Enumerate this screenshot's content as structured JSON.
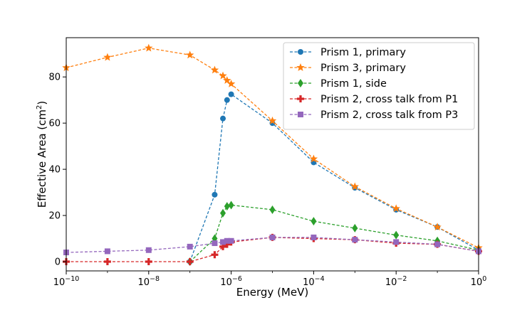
{
  "chart_data": {
    "type": "line",
    "title": "",
    "xlabel": "Energy (MeV)",
    "ylabel_main": "Effective Area (cm",
    "ylabel_sup": "2",
    "ylabel_close": ")",
    "xscale": "log",
    "xlim_exp": [
      -10,
      0
    ],
    "ylim": [
      -4,
      97
    ],
    "x_ticks": [
      {
        "base": "10",
        "exp": "−10",
        "value": -10
      },
      {
        "base": "10",
        "exp": "−8",
        "value": -8
      },
      {
        "base": "10",
        "exp": "−6",
        "value": -6
      },
      {
        "base": "10",
        "exp": "−4",
        "value": -4
      },
      {
        "base": "10",
        "exp": "−2",
        "value": -2
      },
      {
        "base": "10",
        "exp": "0",
        "value": 0
      }
    ],
    "y_ticks": [
      {
        "label": "0",
        "value": 0
      },
      {
        "label": "20",
        "value": 20
      },
      {
        "label": "40",
        "value": 40
      },
      {
        "label": "60",
        "value": 60
      },
      {
        "label": "80",
        "value": 80
      }
    ],
    "legend_position": "top-right",
    "series": [
      {
        "name": "Prism 1, primary",
        "color": "#1f77b4",
        "marker": "circle",
        "x_log10": [
          -7,
          -6.4,
          -6.2,
          -6.1,
          -6,
          -5,
          -4,
          -3,
          -2,
          -1,
          0
        ],
        "y": [
          0,
          29,
          62,
          70,
          72.5,
          60,
          43,
          32,
          22.5,
          15,
          5
        ]
      },
      {
        "name": "Prism 3, primary",
        "color": "#ff7f0e",
        "marker": "star",
        "x_log10": [
          -10,
          -9,
          -8,
          -7,
          -6.4,
          -6.2,
          -6.1,
          -6,
          -5,
          -4,
          -3,
          -2,
          -1,
          0
        ],
        "y": [
          84,
          88.5,
          92.5,
          89.5,
          83,
          80.5,
          78.5,
          77,
          61,
          44.5,
          32.5,
          23,
          15,
          6
        ]
      },
      {
        "name": "Prism 1, side",
        "color": "#2ca02c",
        "marker": "diamond",
        "x_log10": [
          -7,
          -6.4,
          -6.2,
          -6.1,
          -6,
          -5,
          -4,
          -3,
          -2,
          -1,
          0
        ],
        "y": [
          0,
          10,
          21,
          24,
          24.5,
          22.5,
          17.5,
          14.5,
          11.5,
          9,
          5
        ]
      },
      {
        "name": "Prism 2, cross talk from P1",
        "color": "#d62728",
        "marker": "plus",
        "x_log10": [
          -10,
          -9,
          -8,
          -7,
          -6.4,
          -6.2,
          -6.1,
          -6,
          -5,
          -4,
          -3,
          -2,
          -1,
          0
        ],
        "y": [
          0,
          0,
          0,
          0,
          3,
          6.5,
          7.5,
          8.5,
          10.5,
          10,
          9.5,
          8,
          7.5,
          4.5
        ]
      },
      {
        "name": "Prism 2, cross talk from P3",
        "color": "#9467bd",
        "marker": "square",
        "x_log10": [
          -10,
          -9,
          -8,
          -7,
          -6.4,
          -6.2,
          -6.1,
          -6,
          -5,
          -4,
          -3,
          -2,
          -1,
          0
        ],
        "y": [
          4,
          4.5,
          5,
          6.5,
          8,
          8.5,
          9,
          9,
          10.5,
          10.5,
          9.5,
          8.5,
          7.5,
          4.5
        ]
      }
    ]
  }
}
